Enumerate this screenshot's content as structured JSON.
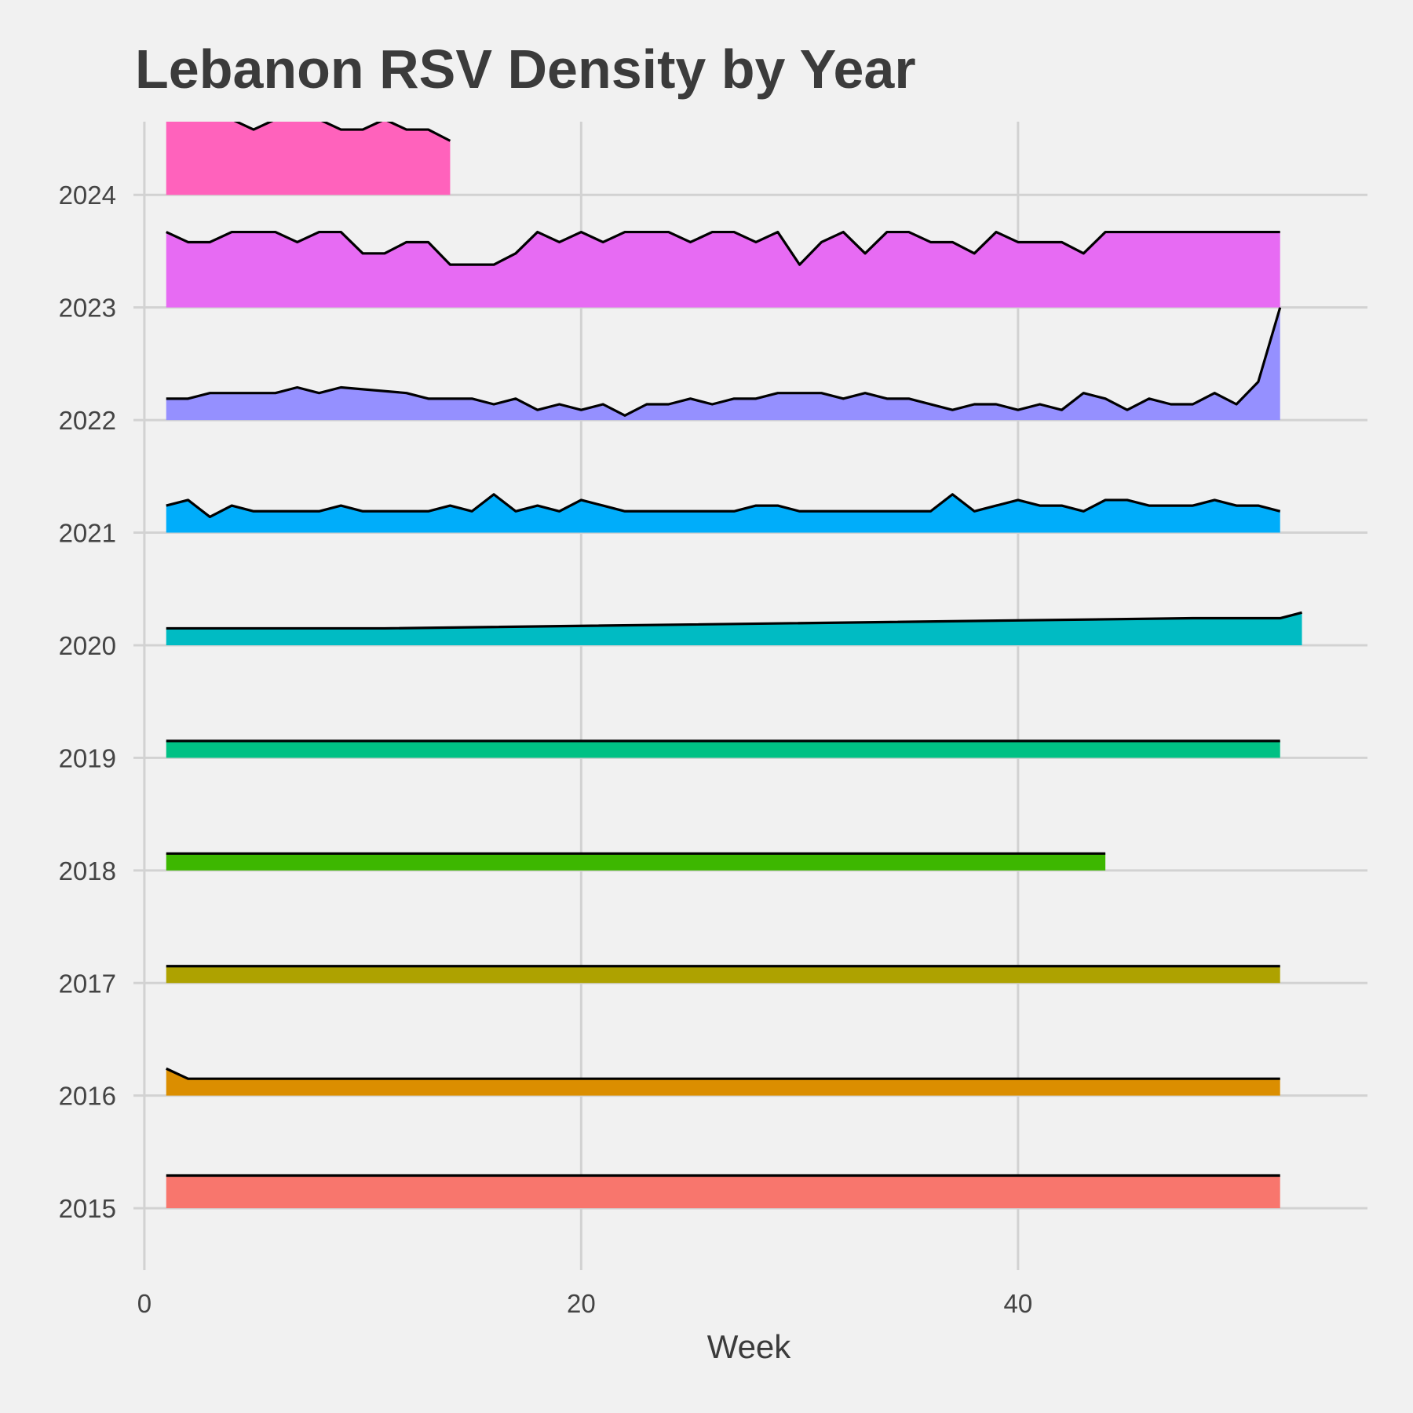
{
  "chart_data": {
    "type": "area",
    "title": "Lebanon RSV Density by Year",
    "xlabel": "Week",
    "ylabel": "",
    "xlim": [
      -0.5,
      56
    ],
    "ylim": [
      2014.45,
      2024.65
    ],
    "x_ticks": [
      0,
      20,
      40
    ],
    "y_ticks": [
      2015,
      2016,
      2017,
      2018,
      2019,
      2020,
      2021,
      2022,
      2023,
      2024
    ],
    "grid": true,
    "legend": "none",
    "series": [
      {
        "baseline": 2015,
        "color": "#F8766D",
        "x": [
          1,
          52
        ],
        "y": [
          2015.29,
          2015.29
        ]
      },
      {
        "baseline": 2016,
        "color": "#DB8E00",
        "x": [
          1,
          2,
          52
        ],
        "y": [
          2016.24,
          2016.15,
          2016.15
        ]
      },
      {
        "baseline": 2017,
        "color": "#AEA200",
        "x": [
          1,
          52
        ],
        "y": [
          2017.15,
          2017.15
        ]
      },
      {
        "baseline": 2018,
        "color": "#3DB700",
        "x": [
          1,
          44
        ],
        "y": [
          2018.15,
          2018.15
        ]
      },
      {
        "baseline": 2019,
        "color": "#00C184",
        "x": [
          1,
          52
        ],
        "y": [
          2019.15,
          2019.15
        ]
      },
      {
        "baseline": 2020,
        "color": "#00BBC3",
        "x": [
          1,
          11,
          48,
          52,
          53
        ],
        "y": [
          2020.15,
          2020.15,
          2020.24,
          2020.24,
          2020.29
        ]
      },
      {
        "baseline": 2021,
        "color": "#00ADFA",
        "x": [
          1,
          2,
          3,
          4,
          5,
          6,
          7,
          8,
          9,
          10,
          11,
          12,
          13,
          14,
          15,
          16,
          17,
          18,
          19,
          20,
          21,
          22,
          23,
          24,
          25,
          26,
          27,
          28,
          29,
          30,
          31,
          32,
          33,
          34,
          35,
          36,
          37,
          38,
          39,
          40,
          41,
          42,
          43,
          44,
          45,
          46,
          47,
          48,
          49,
          50,
          51,
          52
        ],
        "y": [
          2021.24,
          2021.29,
          2021.14,
          2021.24,
          2021.19,
          2021.19,
          2021.19,
          2021.19,
          2021.24,
          2021.19,
          2021.19,
          2021.19,
          2021.19,
          2021.24,
          2021.19,
          2021.34,
          2021.19,
          2021.24,
          2021.19,
          2021.29,
          2021.24,
          2021.19,
          2021.19,
          2021.19,
          2021.19,
          2021.19,
          2021.19,
          2021.24,
          2021.24,
          2021.19,
          2021.19,
          2021.19,
          2021.19,
          2021.19,
          2021.19,
          2021.19,
          2021.34,
          2021.19,
          2021.24,
          2021.29,
          2021.24,
          2021.24,
          2021.19,
          2021.29,
          2021.29,
          2021.24,
          2021.24,
          2021.24,
          2021.29,
          2021.24,
          2021.24,
          2021.19
        ]
      },
      {
        "baseline": 2022,
        "color": "#9590FF",
        "x": [
          1,
          2,
          3,
          4,
          5,
          6,
          7,
          8,
          9,
          12,
          13,
          14,
          15,
          16,
          17,
          18,
          19,
          20,
          21,
          22,
          23,
          24,
          25,
          26,
          27,
          28,
          29,
          30,
          31,
          32,
          33,
          34,
          35,
          37,
          38,
          39,
          40,
          41,
          42,
          43,
          44,
          45,
          46,
          47,
          48,
          49,
          50,
          51,
          52
        ],
        "y": [
          2022.19,
          2022.19,
          2022.24,
          2022.24,
          2022.24,
          2022.24,
          2022.29,
          2022.24,
          2022.29,
          2022.24,
          2022.19,
          2022.19,
          2022.19,
          2022.14,
          2022.19,
          2022.09,
          2022.14,
          2022.09,
          2022.14,
          2022.04,
          2022.14,
          2022.14,
          2022.19,
          2022.14,
          2022.19,
          2022.19,
          2022.24,
          2022.24,
          2022.24,
          2022.19,
          2022.24,
          2022.19,
          2022.19,
          2022.09,
          2022.14,
          2022.14,
          2022.09,
          2022.14,
          2022.09,
          2022.24,
          2022.19,
          2022.09,
          2022.19,
          2022.14,
          2022.14,
          2022.24,
          2022.14,
          2022.34,
          2023.0
        ]
      },
      {
        "baseline": 2023,
        "color": "#E76BF3",
        "x": [
          1,
          2,
          3,
          4,
          5,
          6,
          7,
          8,
          9,
          10,
          11,
          12,
          13,
          14,
          15,
          16,
          17,
          18,
          19,
          20,
          21,
          22,
          23,
          24,
          25,
          26,
          27,
          28,
          29,
          30,
          31,
          32,
          33,
          34,
          35,
          36,
          37,
          38,
          39,
          40,
          41,
          42,
          43,
          44,
          45,
          46,
          47,
          48,
          49,
          50,
          51,
          52
        ],
        "y": [
          2023.67,
          2023.58,
          2023.58,
          2023.67,
          2023.67,
          2023.67,
          2023.58,
          2023.67,
          2023.67,
          2023.48,
          2023.48,
          2023.58,
          2023.58,
          2023.38,
          2023.38,
          2023.38,
          2023.48,
          2023.67,
          2023.58,
          2023.67,
          2023.58,
          2023.67,
          2023.67,
          2023.67,
          2023.58,
          2023.67,
          2023.67,
          2023.58,
          2023.67,
          2023.38,
          2023.58,
          2023.67,
          2023.48,
          2023.67,
          2023.67,
          2023.58,
          2023.58,
          2023.48,
          2023.67,
          2023.58,
          2023.58,
          2023.58,
          2023.48,
          2023.67,
          2023.67,
          2023.67,
          2023.67,
          2023.67,
          2023.67,
          2023.67,
          2023.67,
          2023.67
        ]
      },
      {
        "baseline": 2024,
        "color": "#FF62BC",
        "x": [
          1,
          2,
          3,
          4,
          5,
          6,
          7,
          8,
          9,
          10,
          11,
          12,
          13,
          14
        ],
        "y": [
          2024.67,
          2024.67,
          2024.67,
          2024.67,
          2024.58,
          2024.67,
          2024.67,
          2024.67,
          2024.58,
          2024.58,
          2024.67,
          2024.58,
          2024.58,
          2024.48
        ]
      }
    ]
  }
}
